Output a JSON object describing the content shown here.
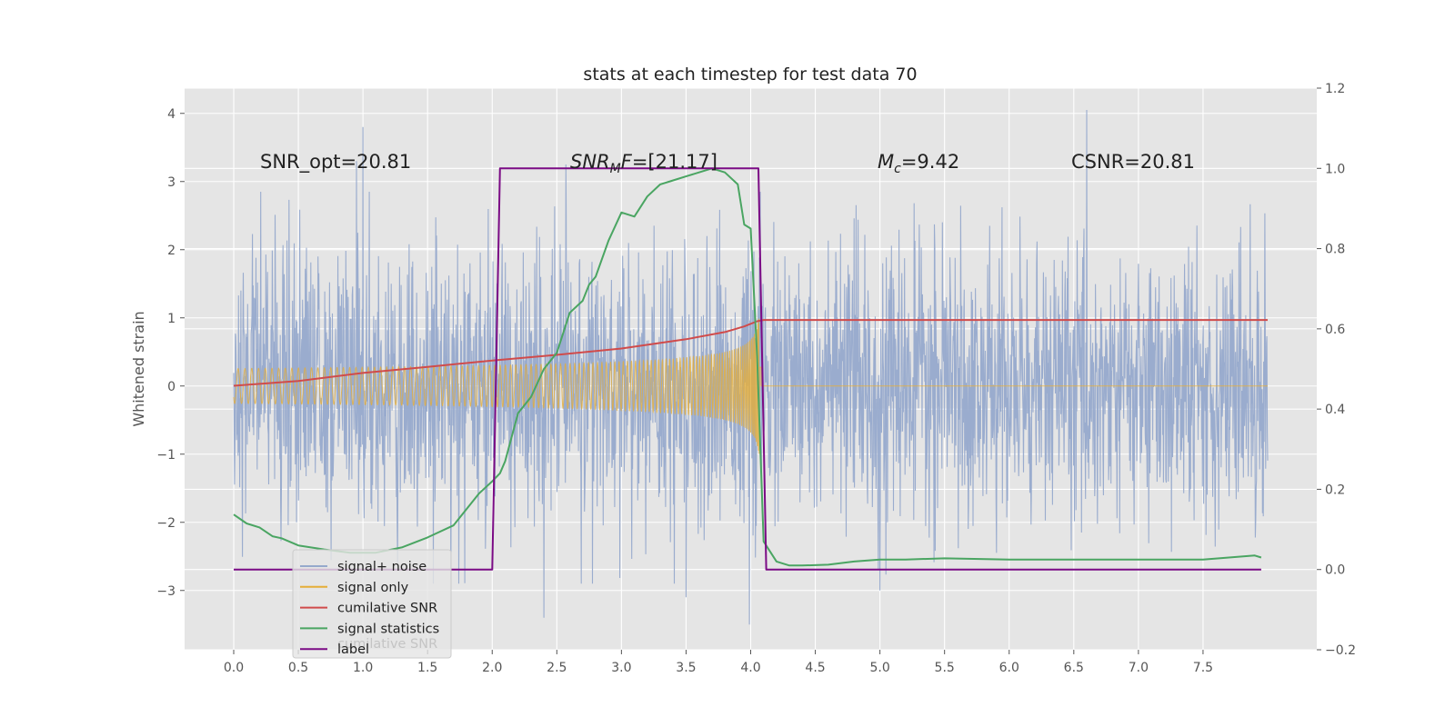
{
  "chart_data": {
    "type": "line",
    "title": "stats at each timestep for test data 70",
    "ylabel": "Whitened strain",
    "xlabel": "",
    "xlim": [
      -0.38,
      8.38
    ],
    "ylim": [
      -3.87,
      4.37
    ],
    "y2lim": [
      -0.2,
      1.2
    ],
    "x_ticks": [
      "0.0",
      "0.5",
      "1.0",
      "1.5",
      "2.0",
      "2.5",
      "3.0",
      "3.5",
      "4.0",
      "4.5",
      "5.0",
      "5.5",
      "6.0",
      "6.5",
      "7.0",
      "7.5"
    ],
    "y_ticks": [
      "−3",
      "−2",
      "−1",
      "0",
      "1",
      "2",
      "3",
      "4"
    ],
    "y2_ticks": [
      "−0.2",
      "0.0",
      "0.2",
      "0.4",
      "0.6",
      "0.8",
      "1.0",
      "1.2"
    ],
    "grid": true,
    "annotations": {
      "snr_opt": "SNR_opt=20.81",
      "snr_mf_italic": "SNR",
      "snr_mf_sub": "M",
      "snr_mf_italic2": "F",
      "snr_mf_value": "=[21.17]",
      "mc_italic": "M",
      "mc_sub": "c",
      "mc_value": "=9.42",
      "csnr": "CSNR=20.81"
    },
    "legend": {
      "position": "lower-left",
      "entries": [
        "signal+ noise",
        "signal only",
        "cumilative SNR",
        "signal statistics",
        "label"
      ],
      "ghost_text": "cumilative SNR"
    },
    "series": [
      {
        "name": "signal+ noise",
        "axis": "left",
        "color": "#96a9cc",
        "kind": "noise",
        "x_range": [
          0.0,
          8.0
        ],
        "spikes": [
          {
            "x": 0.95,
            "y": 3.3
          },
          {
            "x": 1.0,
            "y": 3.8
          },
          {
            "x": 2.4,
            "y": -3.4
          },
          {
            "x": 2.57,
            "y": 3.25
          },
          {
            "x": 3.5,
            "y": -3.1
          },
          {
            "x": 3.99,
            "y": -3.5
          },
          {
            "x": 5.0,
            "y": -3.0
          },
          {
            "x": 6.6,
            "y": 4.05
          }
        ]
      },
      {
        "name": "signal only",
        "axis": "left",
        "color": "#e5ae38",
        "kind": "chirp",
        "x_range": [
          0.0,
          4.1
        ],
        "envelope_end": 1.1
      },
      {
        "name": "cumilative SNR",
        "axis": "right",
        "color": "#d04b4b",
        "x": [
          0.0,
          0.5,
          1.0,
          1.5,
          2.0,
          2.5,
          3.0,
          3.5,
          3.8,
          3.95,
          4.05,
          4.1,
          8.0
        ],
        "values": [
          0.458,
          0.47,
          0.49,
          0.505,
          0.521,
          0.535,
          0.551,
          0.574,
          0.592,
          0.606,
          0.619,
          0.622,
          0.622
        ]
      },
      {
        "name": "signal statistics",
        "axis": "right",
        "color": "#4aa562",
        "x": [
          0.0,
          0.1,
          0.2,
          0.3,
          0.37,
          0.5,
          0.7,
          0.9,
          1.1,
          1.3,
          1.5,
          1.7,
          1.9,
          2.0,
          2.06,
          2.1,
          2.2,
          2.3,
          2.4,
          2.5,
          2.6,
          2.7,
          2.75,
          2.8,
          2.9,
          3.0,
          3.1,
          3.2,
          3.3,
          3.4,
          3.5,
          3.6,
          3.7,
          3.8,
          3.9,
          3.95,
          4.0,
          4.05,
          4.1,
          4.2,
          4.3,
          4.4,
          4.6,
          4.8,
          5.0,
          5.2,
          5.5,
          6.0,
          6.5,
          7.0,
          7.5,
          7.7,
          7.9,
          7.95
        ],
        "values": [
          0.137,
          0.115,
          0.105,
          0.083,
          0.078,
          0.06,
          0.05,
          0.042,
          0.042,
          0.055,
          0.08,
          0.11,
          0.19,
          0.22,
          0.24,
          0.27,
          0.39,
          0.43,
          0.5,
          0.54,
          0.64,
          0.67,
          0.71,
          0.73,
          0.82,
          0.89,
          0.88,
          0.93,
          0.96,
          0.97,
          0.98,
          0.99,
          1.0,
          0.99,
          0.96,
          0.86,
          0.85,
          0.53,
          0.07,
          0.02,
          0.01,
          0.01,
          0.012,
          0.02,
          0.025,
          0.025,
          0.028,
          0.025,
          0.025,
          0.025,
          0.025,
          0.03,
          0.035,
          0.03
        ]
      },
      {
        "name": "label",
        "axis": "right",
        "color": "#7b0b85",
        "x": [
          0.0,
          2.0,
          2.06,
          4.06,
          4.12,
          7.95
        ],
        "values": [
          0.0,
          0.0,
          1.0,
          1.0,
          0.0,
          0.0
        ]
      }
    ]
  }
}
